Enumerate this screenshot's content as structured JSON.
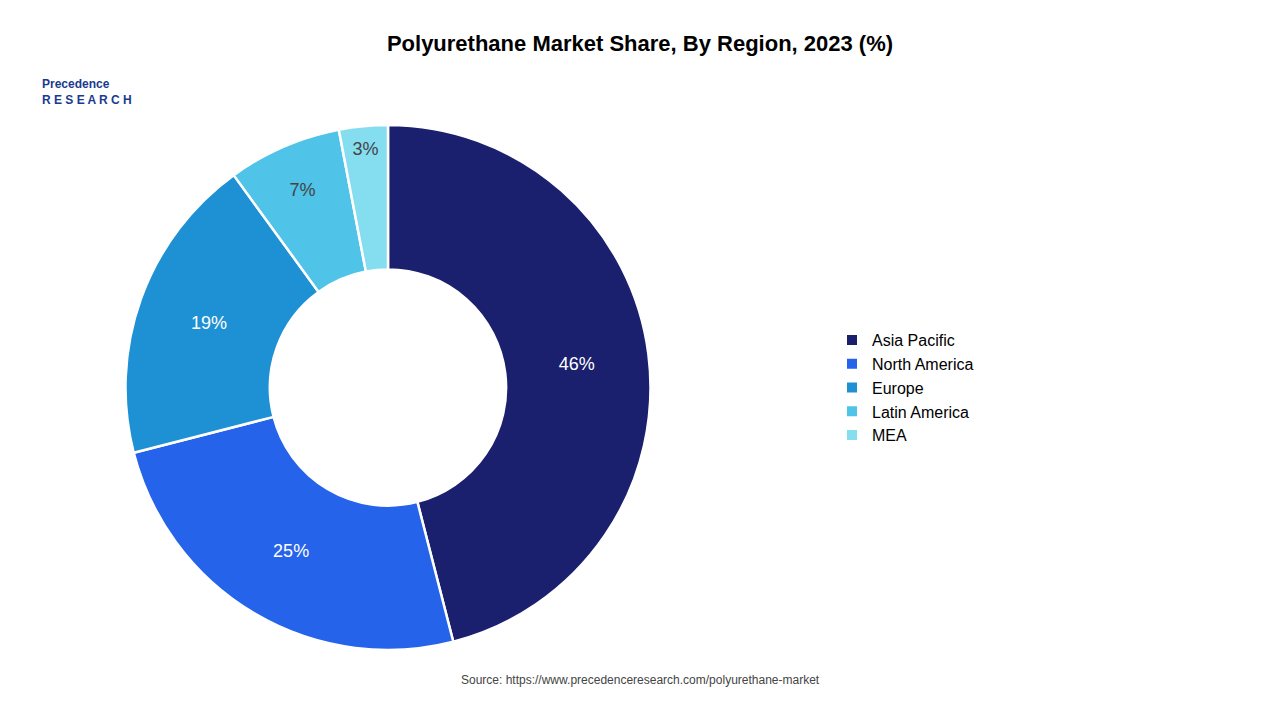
{
  "chart_data": {
    "type": "pie",
    "title": "Polyurethane Market Share, By Region, 2023 (%)",
    "categories": [
      "Asia Pacific",
      "North America",
      "Europe",
      "Latin America",
      "MEA"
    ],
    "values": [
      46,
      25,
      19,
      7,
      3
    ],
    "value_labels": [
      "46%",
      "25%",
      "19%",
      "7%",
      "3%"
    ],
    "colors": [
      "#1a1f6e",
      "#2563eb",
      "#1e90d4",
      "#4fc3e8",
      "#85ddf0"
    ],
    "data_labels": true,
    "legend": "right",
    "annotations": [
      "Precedence\nR E S E A R C H",
      "Source: https://www.precedenceresearch.com/polyurethane-market"
    ]
  }
}
